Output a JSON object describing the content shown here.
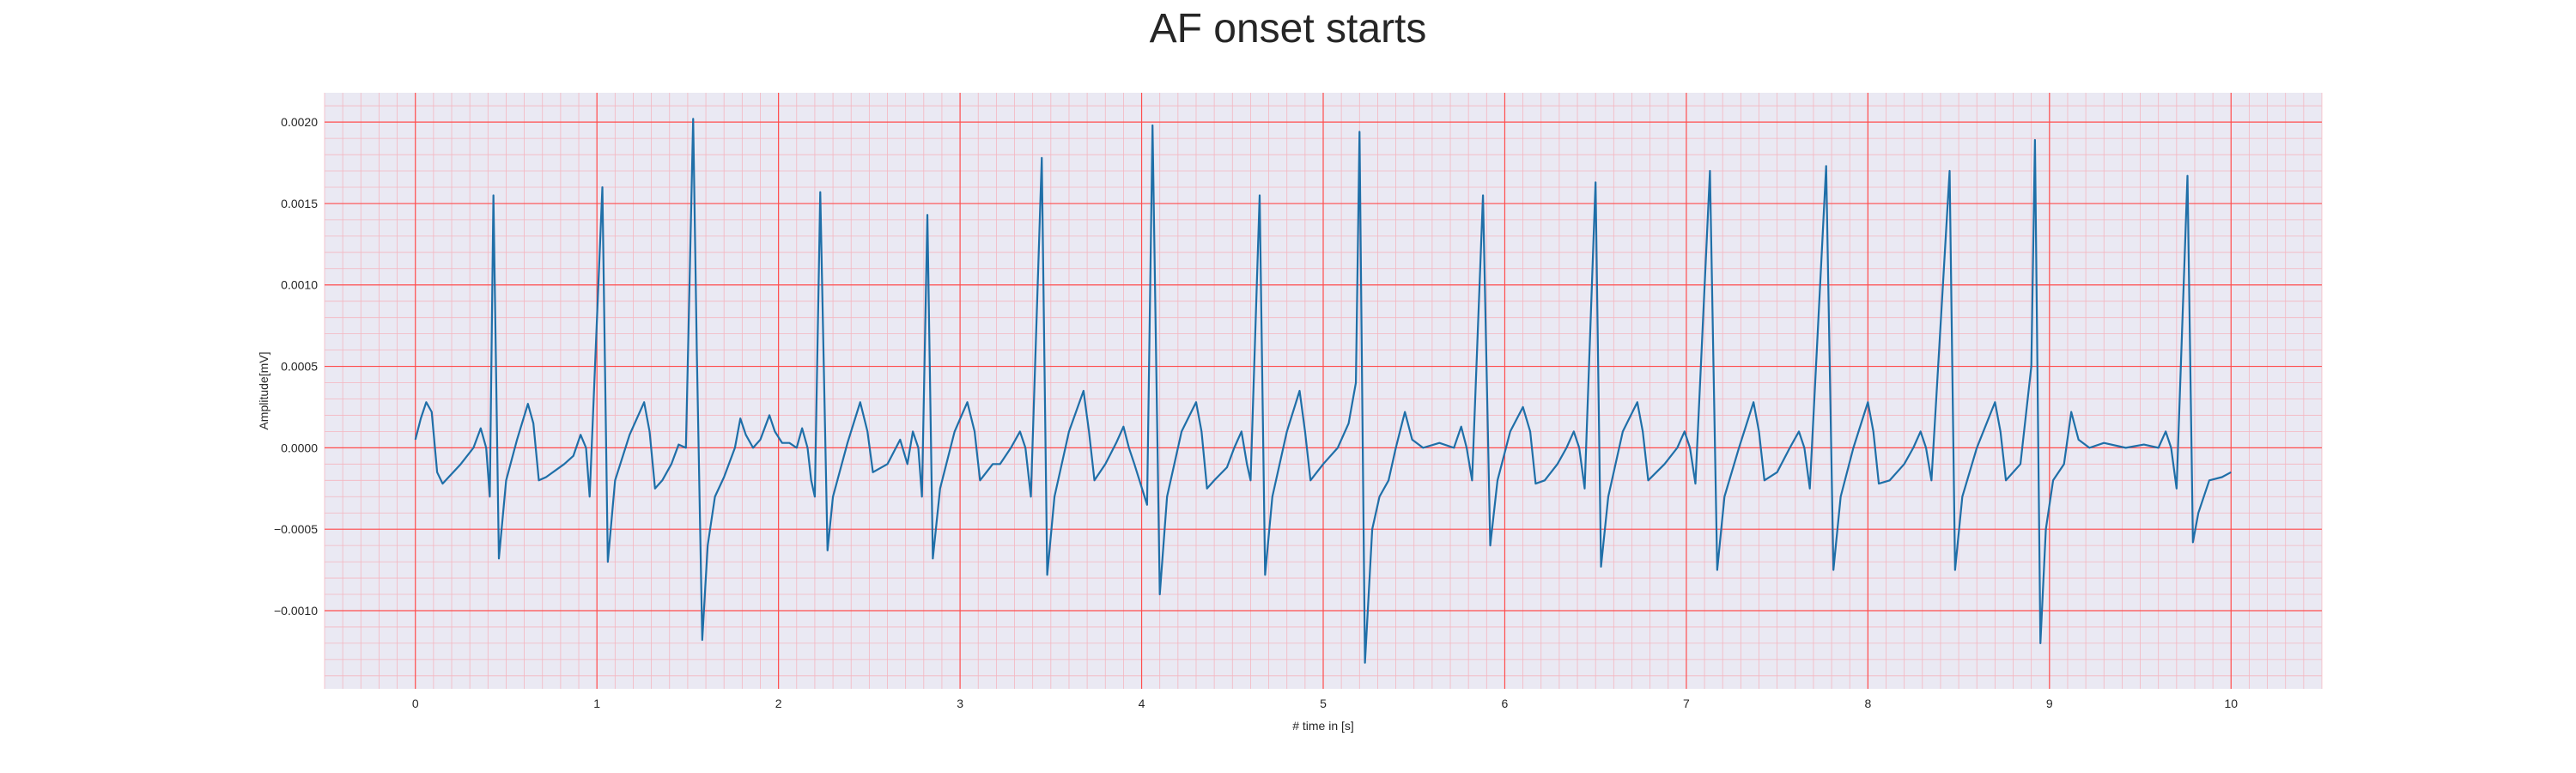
{
  "chart_data": {
    "type": "line",
    "title": "AF onset starts",
    "xlabel": "# time in [s]",
    "ylabel": "Amplitude[mV]",
    "xlim": [
      -0.5,
      10.5
    ],
    "ylim": [
      -0.00148,
      0.00218
    ],
    "x_ticks": [
      0,
      1,
      2,
      3,
      4,
      5,
      6,
      7,
      8,
      9,
      10
    ],
    "x_tick_labels": [
      "0",
      "1",
      "2",
      "3",
      "4",
      "5",
      "6",
      "7",
      "8",
      "9",
      "10"
    ],
    "y_ticks": [
      -0.001,
      -0.0005,
      0,
      0.0005,
      0.001,
      0.0015,
      0.002
    ],
    "y_tick_labels": [
      "−0.0010",
      "−0.0005",
      "0.0000",
      "0.0005",
      "0.0010",
      "0.0015",
      "0.0020"
    ],
    "grid": {
      "major": true,
      "minor": true,
      "major_color": "#ff4d4d",
      "minor_color": "#f4b6c0"
    },
    "background_color": "#eae9f3",
    "line_color": "#1f6fa8",
    "series": [
      {
        "values": [
          [
            0.0,
            5e-05
          ],
          [
            0.03,
            0.00018
          ],
          [
            0.06,
            0.00028
          ],
          [
            0.09,
            0.00022
          ],
          [
            0.12,
            -0.00015
          ],
          [
            0.15,
            -0.00022
          ],
          [
            0.25,
            -0.0001
          ],
          [
            0.32,
            0.0
          ],
          [
            0.36,
            0.00012
          ],
          [
            0.39,
            0.0
          ],
          [
            0.41,
            -0.0003
          ],
          [
            0.43,
            0.00155
          ],
          [
            0.46,
            -0.00068
          ],
          [
            0.5,
            -0.0002
          ],
          [
            0.56,
            5e-05
          ],
          [
            0.62,
            0.00027
          ],
          [
            0.65,
            0.00015
          ],
          [
            0.68,
            -0.0002
          ],
          [
            0.72,
            -0.00018
          ],
          [
            0.82,
            -0.0001
          ],
          [
            0.87,
            -5e-05
          ],
          [
            0.91,
            8e-05
          ],
          [
            0.94,
            0.0
          ],
          [
            0.96,
            -0.0003
          ],
          [
            1.03,
            0.0016
          ],
          [
            1.06,
            -0.0007
          ],
          [
            1.1,
            -0.0002
          ],
          [
            1.18,
            8e-05
          ],
          [
            1.26,
            0.00028
          ],
          [
            1.29,
            0.0001
          ],
          [
            1.32,
            -0.00025
          ],
          [
            1.36,
            -0.0002
          ],
          [
            1.41,
            -0.0001
          ],
          [
            1.45,
            2e-05
          ],
          [
            1.49,
            0.0
          ],
          [
            1.5,
            0.0005
          ],
          [
            1.53,
            0.00202
          ],
          [
            1.55,
            0.0006
          ],
          [
            1.58,
            -0.00118
          ],
          [
            1.61,
            -0.0006
          ],
          [
            1.65,
            -0.0003
          ],
          [
            1.7,
            -0.00018
          ],
          [
            1.76,
            0.0
          ],
          [
            1.79,
            0.00018
          ],
          [
            1.82,
            8e-05
          ],
          [
            1.86,
            0.0
          ],
          [
            1.9,
            5e-05
          ],
          [
            1.95,
            0.0002
          ],
          [
            1.98,
            0.0001
          ],
          [
            2.02,
            3e-05
          ],
          [
            2.06,
            3e-05
          ],
          [
            2.1,
            0.0
          ],
          [
            2.13,
            0.00012
          ],
          [
            2.16,
            0.0
          ],
          [
            2.18,
            -0.0002
          ],
          [
            2.2,
            -0.0003
          ],
          [
            2.23,
            0.00157
          ],
          [
            2.27,
            -0.00063
          ],
          [
            2.3,
            -0.0003
          ],
          [
            2.38,
            3e-05
          ],
          [
            2.45,
            0.00028
          ],
          [
            2.49,
            0.0001
          ],
          [
            2.52,
            -0.00015
          ],
          [
            2.6,
            -0.0001
          ],
          [
            2.67,
            5e-05
          ],
          [
            2.71,
            -0.0001
          ],
          [
            2.74,
            0.0001
          ],
          [
            2.77,
            0.0
          ],
          [
            2.79,
            -0.0003
          ],
          [
            2.82,
            0.00143
          ],
          [
            2.85,
            -0.00068
          ],
          [
            2.89,
            -0.00025
          ],
          [
            2.97,
            0.0001
          ],
          [
            3.04,
            0.00028
          ],
          [
            3.08,
            0.0001
          ],
          [
            3.11,
            -0.0002
          ],
          [
            3.18,
            -0.0001
          ],
          [
            3.22,
            -0.0001
          ],
          [
            3.28,
            0.0
          ],
          [
            3.33,
            0.0001
          ],
          [
            3.36,
            0.0
          ],
          [
            3.39,
            -0.0003
          ],
          [
            3.45,
            0.00178
          ],
          [
            3.48,
            -0.00078
          ],
          [
            3.52,
            -0.0003
          ],
          [
            3.6,
            0.0001
          ],
          [
            3.68,
            0.00035
          ],
          [
            3.71,
            0.0001
          ],
          [
            3.74,
            -0.0002
          ],
          [
            3.8,
            -0.0001
          ],
          [
            3.86,
            3e-05
          ],
          [
            3.9,
            0.00013
          ],
          [
            3.93,
            0.0
          ],
          [
            3.96,
            -0.0001
          ],
          [
            4.03,
            -0.00035
          ],
          [
            4.06,
            0.00198
          ],
          [
            4.1,
            -0.0009
          ],
          [
            4.14,
            -0.0003
          ],
          [
            4.22,
            0.0001
          ],
          [
            4.3,
            0.00028
          ],
          [
            4.33,
            0.0001
          ],
          [
            4.36,
            -0.00025
          ],
          [
            4.4,
            -0.0002
          ],
          [
            4.47,
            -0.00012
          ],
          [
            4.51,
            0.0
          ],
          [
            4.55,
            0.0001
          ],
          [
            4.58,
            -0.0001
          ],
          [
            4.6,
            -0.0002
          ],
          [
            4.65,
            0.00155
          ],
          [
            4.68,
            -0.00078
          ],
          [
            4.72,
            -0.0003
          ],
          [
            4.8,
            0.0001
          ],
          [
            4.87,
            0.00035
          ],
          [
            4.9,
            0.0001
          ],
          [
            4.93,
            -0.0002
          ],
          [
            5.0,
            -0.0001
          ],
          [
            5.08,
            0.0
          ],
          [
            5.14,
            0.00015
          ],
          [
            5.18,
            0.0004
          ],
          [
            5.2,
            0.00194
          ],
          [
            5.23,
            -0.00132
          ],
          [
            5.27,
            -0.0005
          ],
          [
            5.31,
            -0.0003
          ],
          [
            5.36,
            -0.0002
          ],
          [
            5.4,
            0.0
          ],
          [
            5.45,
            0.00022
          ],
          [
            5.49,
            5e-05
          ],
          [
            5.55,
            0.0
          ],
          [
            5.64,
            3e-05
          ],
          [
            5.72,
            0.0
          ],
          [
            5.76,
            0.00013
          ],
          [
            5.79,
            0.0
          ],
          [
            5.82,
            -0.0002
          ],
          [
            5.88,
            0.00155
          ],
          [
            5.92,
            -0.0006
          ],
          [
            5.96,
            -0.0002
          ],
          [
            6.03,
            0.0001
          ],
          [
            6.1,
            0.00025
          ],
          [
            6.14,
            0.0001
          ],
          [
            6.17,
            -0.00022
          ],
          [
            6.22,
            -0.0002
          ],
          [
            6.29,
            -0.0001
          ],
          [
            6.34,
            0.0
          ],
          [
            6.38,
            0.0001
          ],
          [
            6.41,
            0.0
          ],
          [
            6.44,
            -0.00025
          ],
          [
            6.5,
            0.00163
          ],
          [
            6.53,
            -0.00073
          ],
          [
            6.57,
            -0.0003
          ],
          [
            6.65,
            0.0001
          ],
          [
            6.73,
            0.00028
          ],
          [
            6.76,
            0.0001
          ],
          [
            6.79,
            -0.0002
          ],
          [
            6.88,
            -0.0001
          ],
          [
            6.95,
            0.0
          ],
          [
            6.99,
            0.0001
          ],
          [
            7.02,
            0.0
          ],
          [
            7.05,
            -0.00022
          ],
          [
            7.13,
            0.0017
          ],
          [
            7.17,
            -0.00075
          ],
          [
            7.21,
            -0.0003
          ],
          [
            7.29,
            0.0
          ],
          [
            7.37,
            0.00028
          ],
          [
            7.4,
            0.0001
          ],
          [
            7.43,
            -0.0002
          ],
          [
            7.5,
            -0.00015
          ],
          [
            7.57,
            0.0
          ],
          [
            7.62,
            0.0001
          ],
          [
            7.65,
            0.0
          ],
          [
            7.68,
            -0.00025
          ],
          [
            7.77,
            0.00173
          ],
          [
            7.81,
            -0.00075
          ],
          [
            7.85,
            -0.0003
          ],
          [
            7.92,
            0.0
          ],
          [
            8.0,
            0.00028
          ],
          [
            8.03,
            0.0001
          ],
          [
            8.06,
            -0.00022
          ],
          [
            8.12,
            -0.0002
          ],
          [
            8.2,
            -0.0001
          ],
          [
            8.25,
            0.0
          ],
          [
            8.29,
            0.0001
          ],
          [
            8.32,
            0.0
          ],
          [
            8.35,
            -0.0002
          ],
          [
            8.45,
            0.0017
          ],
          [
            8.48,
            -0.00075
          ],
          [
            8.52,
            -0.0003
          ],
          [
            8.6,
            0.0
          ],
          [
            8.7,
            0.00028
          ],
          [
            8.73,
            0.0001
          ],
          [
            8.76,
            -0.0002
          ],
          [
            8.84,
            -0.0001
          ],
          [
            8.9,
            0.0005
          ],
          [
            8.92,
            0.00189
          ],
          [
            8.95,
            -0.0012
          ],
          [
            8.98,
            -0.0005
          ],
          [
            9.02,
            -0.0002
          ],
          [
            9.08,
            -0.0001
          ],
          [
            9.12,
            0.00022
          ],
          [
            9.16,
            5e-05
          ],
          [
            9.22,
            0.0
          ],
          [
            9.3,
            3e-05
          ],
          [
            9.42,
            0.0
          ],
          [
            9.52,
            2e-05
          ],
          [
            9.6,
            0.0
          ],
          [
            9.64,
            0.0001
          ],
          [
            9.67,
            0.0
          ],
          [
            9.7,
            -0.00025
          ],
          [
            9.76,
            0.00167
          ],
          [
            9.79,
            -0.00058
          ],
          [
            9.82,
            -0.0004
          ],
          [
            9.88,
            -0.0002
          ],
          [
            9.95,
            -0.00018
          ],
          [
            10.0,
            -0.00015
          ]
        ]
      }
    ]
  }
}
